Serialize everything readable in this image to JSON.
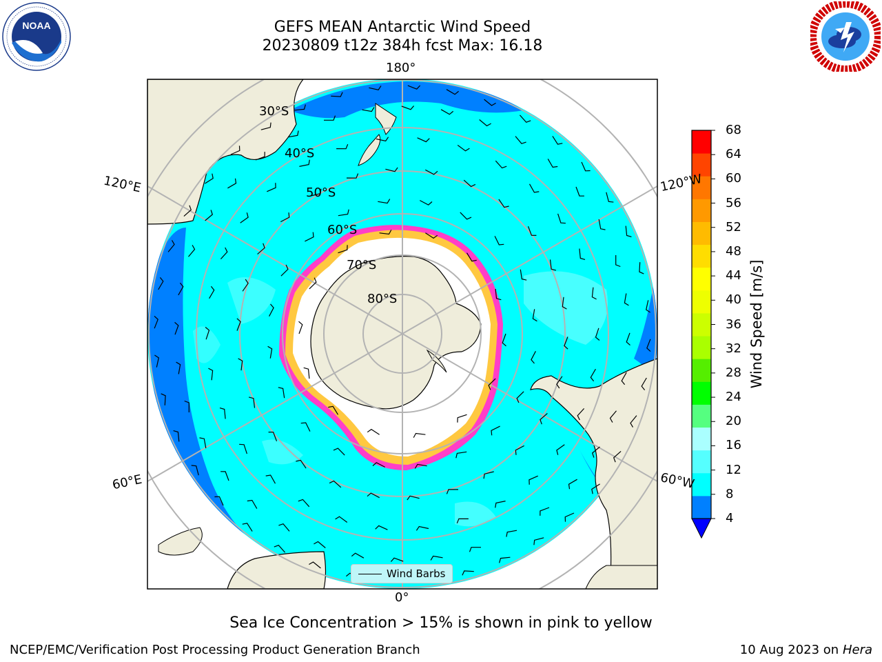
{
  "title": {
    "line1": "GEFS MEAN Antarctic Wind Speed",
    "line2": "20230809 t12z 384h fcst   Max: 16.18"
  },
  "logos": {
    "left": {
      "icon": "noaa-logo-icon",
      "text": "NOAA",
      "ring_text": "NATIONAL OCEANIC AND ATMOSPHERIC ADMINISTRATION · U.S. DEPARTMENT OF COMMERCE"
    },
    "right": {
      "icon": "nws-logo-icon",
      "ring_text": "NATIONAL WEATHER SERVICE"
    }
  },
  "map": {
    "projection": "south-polar-stereographic",
    "longitude_labels": {
      "top": "180°",
      "bottom": "0°",
      "upper_left": "120°E",
      "upper_right": "120°W",
      "lower_left": "60°E",
      "lower_right": "60°W"
    },
    "latitude_labels": [
      "30°S",
      "40°S",
      "50°S",
      "60°S",
      "70°S",
      "80°S"
    ],
    "legend": {
      "label": "Wind Barbs"
    },
    "colors": {
      "ocean_dominant": "#00ffff",
      "ocean_low": "#0080ff",
      "ocean_light": "#55ffff",
      "land": "#efeddb",
      "sea_ice_edge": "#ff3ec8",
      "sea_ice_yellow": "#ffc840",
      "grid": "#b3b3b3"
    }
  },
  "colorbar": {
    "label": "Wind Speed [m/s]",
    "ticks": [
      "4",
      "8",
      "12",
      "16",
      "20",
      "24",
      "28",
      "32",
      "36",
      "40",
      "44",
      "48",
      "52",
      "56",
      "60",
      "64",
      "68"
    ],
    "min_extend_color": "#0000ff",
    "colors": [
      "#0080ff",
      "#00ffff",
      "#55ffff",
      "#aaffff",
      "#55ff80",
      "#00ff00",
      "#55ee00",
      "#aaff00",
      "#ccff00",
      "#eeff00",
      "#ffff00",
      "#ffdd00",
      "#ffbb00",
      "#ff9900",
      "#ff7700",
      "#ff4400",
      "#ff0000"
    ]
  },
  "caption": "Sea Ice Concentration > 15% is shown in pink to yellow",
  "footer": {
    "left": "NCEP/EMC/Verification Post Processing Product Generation Branch",
    "right_date": "10 Aug 2023 on",
    "right_host": "Hera"
  }
}
